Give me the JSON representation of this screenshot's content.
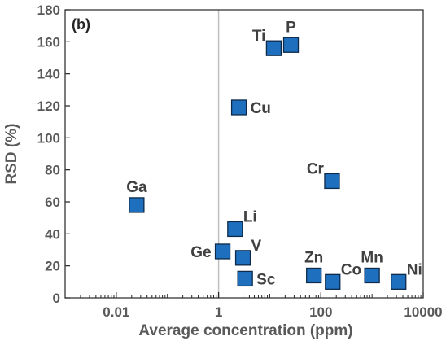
{
  "chart_data": {
    "type": "scatter",
    "panel_label": "(b)",
    "title": "",
    "xlabel": "Average concentration (ppm)",
    "ylabel": "RSD (%)",
    "x_scale": "log",
    "xlim": [
      0.001,
      10000
    ],
    "ylim": [
      0,
      180
    ],
    "x_ticks": [
      0.01,
      1,
      100,
      10000
    ],
    "x_tick_labels": [
      "0.01",
      "1",
      "100",
      "10000"
    ],
    "y_ticks": [
      0,
      20,
      40,
      60,
      80,
      100,
      120,
      140,
      160,
      180
    ],
    "y_tick_labels": [
      "0",
      "20",
      "40",
      "60",
      "80",
      "100",
      "120",
      "140",
      "160",
      "180"
    ],
    "reference_line_x": 1,
    "grid": false,
    "marker": "square",
    "marker_color": "#1f6fbf",
    "marker_edge_color": "#0d2a4a",
    "points": [
      {
        "label": "Ga",
        "x": 0.025,
        "y": 58,
        "label_pos": "above"
      },
      {
        "label": "Ge",
        "x": 1.2,
        "y": 29,
        "label_pos": "left"
      },
      {
        "label": "Li",
        "x": 2.1,
        "y": 43,
        "label_pos": "right-above"
      },
      {
        "label": "V",
        "x": 3.0,
        "y": 25,
        "label_pos": "right-above"
      },
      {
        "label": "Sc",
        "x": 3.3,
        "y": 12,
        "label_pos": "right"
      },
      {
        "label": "Cu",
        "x": 2.5,
        "y": 119,
        "label_pos": "right"
      },
      {
        "label": "Ti",
        "x": 12,
        "y": 156,
        "label_pos": "left-above"
      },
      {
        "label": "P",
        "x": 26,
        "y": 158,
        "label_pos": "above"
      },
      {
        "label": "Cr",
        "x": 165,
        "y": 73,
        "label_pos": "left-above"
      },
      {
        "label": "Zn",
        "x": 73,
        "y": 14,
        "label_pos": "above"
      },
      {
        "label": "Co",
        "x": 170,
        "y": 10,
        "label_pos": "right-above"
      },
      {
        "label": "Mn",
        "x": 1000,
        "y": 14,
        "label_pos": "above"
      },
      {
        "label": "Ni",
        "x": 3300,
        "y": 10,
        "label_pos": "right-above"
      }
    ]
  }
}
